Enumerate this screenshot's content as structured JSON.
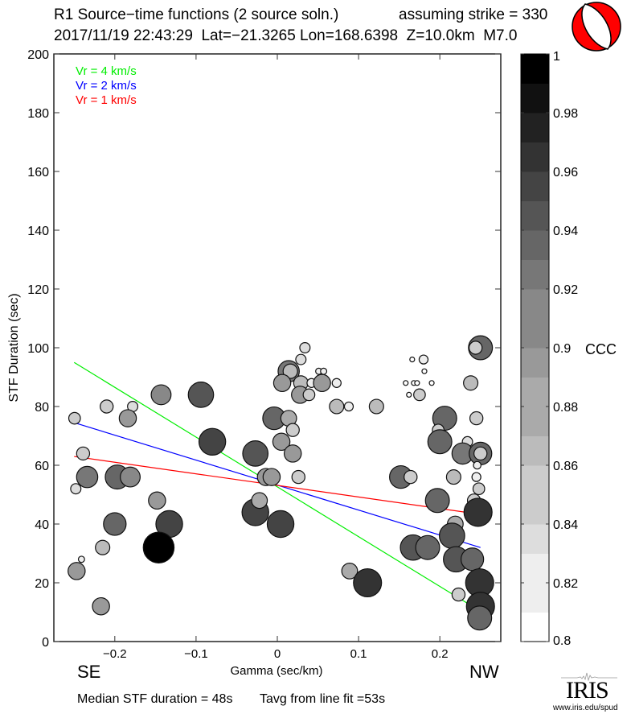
{
  "header": {
    "title": "R1 Source−time functions (2 source soln.)",
    "strike_text": "assuming strike = 330",
    "event_line": "2017/11/19 22:43:29  Lat=−21.3265 Lon=168.6398  Z=10.0km  M7.0"
  },
  "beachball": {
    "icon": "focal-mechanism-beachball",
    "compressional_color": "#ff0000",
    "dilatational_color": "#ffffff"
  },
  "footer": {
    "median_text": "Median STF duration = 48s",
    "tavg_text": "Tavg from line fit =53s"
  },
  "directions": {
    "left": "SE",
    "right": "NW"
  },
  "logo": {
    "name": "IRIS",
    "url_text": "www.iris.edu/spud"
  },
  "chart_data": {
    "type": "scatter",
    "xlabel": "Gamma (sec/km)",
    "ylabel": "STF Duration (sec)",
    "xlim": [
      -0.275,
      0.275
    ],
    "ylim": [
      0,
      200
    ],
    "xticks": [
      -0.2,
      -0.1,
      0,
      0.1,
      0.2
    ],
    "xtick_labels": [
      "−0.2",
      "−0.1",
      "0",
      "0.1",
      "0.2"
    ],
    "yticks": [
      0,
      20,
      40,
      60,
      80,
      100,
      120,
      140,
      160,
      180,
      200
    ],
    "ytick_labels": [
      "0",
      "20",
      "40",
      "60",
      "80",
      "100",
      "120",
      "140",
      "160",
      "180",
      "200"
    ],
    "grid": false,
    "legend": {
      "placement": "top-left",
      "entries": [
        {
          "label": "Vr = 4 km/s",
          "color": "#00ee00"
        },
        {
          "label": "Vr = 2 km/s",
          "color": "#0000ff"
        },
        {
          "label": "Vr = 1 km/s",
          "color": "#ff0000"
        }
      ]
    },
    "lines": [
      {
        "name": "Vr = 4 km/s",
        "color": "#00ee00",
        "x": [
          -0.25,
          0.234
        ],
        "y": [
          95,
          13
        ]
      },
      {
        "name": "Vr = 2 km/s",
        "color": "#0000ff",
        "x": [
          -0.25,
          0.25
        ],
        "y": [
          74.5,
          32
        ]
      },
      {
        "name": "Vr = 1 km/s",
        "color": "#ff0000",
        "x": [
          -0.25,
          0.232
        ],
        "y": [
          63,
          44
        ]
      }
    ],
    "colorbar": {
      "label": "CCC",
      "range": [
        0.8,
        1.0
      ],
      "ticks": [
        0.8,
        0.82,
        0.84,
        0.86,
        0.88,
        0.9,
        0.92,
        0.94,
        0.96,
        0.98,
        1
      ],
      "tick_labels": [
        "0.8",
        "0.82",
        "0.84",
        "0.86",
        "0.88",
        "0.9",
        "0.92",
        "0.94",
        "0.96",
        "0.98",
        "1"
      ],
      "bands": [
        "#ffffff",
        "#eeeeee",
        "#eeeeee",
        "#dddddd",
        "#cccccc",
        "#cccccc",
        "#bbbbbb",
        "#aaaaaa",
        "#aaaaaa",
        "#999999",
        "#888888",
        "#888888",
        "#777777",
        "#666666",
        "#555555",
        "#444444",
        "#333333",
        "#222222",
        "#111111",
        "#000000"
      ]
    },
    "size_note": "marker size scales with CCC",
    "points": [
      {
        "x": -0.2495,
        "y": 76,
        "ccc": 0.85
      },
      {
        "x": -0.21,
        "y": 80,
        "ccc": 0.86
      },
      {
        "x": -0.178,
        "y": 80,
        "ccc": 0.84
      },
      {
        "x": -0.184,
        "y": 76,
        "ccc": 0.89
      },
      {
        "x": -0.143,
        "y": 84,
        "ccc": 0.91
      },
      {
        "x": -0.094,
        "y": 84,
        "ccc": 0.95
      },
      {
        "x": -0.08,
        "y": 68,
        "ccc": 0.96
      },
      {
        "x": -0.239,
        "y": 64,
        "ccc": 0.86
      },
      {
        "x": -0.234,
        "y": 56,
        "ccc": 0.92
      },
      {
        "x": -0.248,
        "y": 52,
        "ccc": 0.84
      },
      {
        "x": -0.197,
        "y": 56,
        "ccc": 0.94
      },
      {
        "x": -0.181,
        "y": 56,
        "ccc": 0.91
      },
      {
        "x": -0.148,
        "y": 48,
        "ccc": 0.89
      },
      {
        "x": -0.2,
        "y": 40,
        "ccc": 0.93
      },
      {
        "x": -0.215,
        "y": 32,
        "ccc": 0.87
      },
      {
        "x": -0.241,
        "y": 28,
        "ccc": 0.81
      },
      {
        "x": -0.247,
        "y": 24,
        "ccc": 0.89
      },
      {
        "x": -0.217,
        "y": 12,
        "ccc": 0.89
      },
      {
        "x": -0.133,
        "y": 40,
        "ccc": 0.96
      },
      {
        "x": -0.146,
        "y": 32,
        "ccc": 0.99
      },
      {
        "x": 0.034,
        "y": 100,
        "ccc": 0.84
      },
      {
        "x": 0.029,
        "y": 96,
        "ccc": 0.84
      },
      {
        "x": 0.014,
        "y": 92,
        "ccc": 0.92
      },
      {
        "x": 0.016,
        "y": 92,
        "ccc": 0.87
      },
      {
        "x": 0.006,
        "y": 88,
        "ccc": 0.89
      },
      {
        "x": 0.029,
        "y": 88,
        "ccc": 0.87
      },
      {
        "x": 0.042,
        "y": 88,
        "ccc": 0.83
      },
      {
        "x": 0.055,
        "y": 88,
        "ccc": 0.89
      },
      {
        "x": 0.073,
        "y": 88,
        "ccc": 0.83
      },
      {
        "x": 0.051,
        "y": 92,
        "ccc": 0.81
      },
      {
        "x": 0.057,
        "y": 92,
        "ccc": 0.81
      },
      {
        "x": 0.028,
        "y": 84,
        "ccc": 0.89
      },
      {
        "x": 0.039,
        "y": 84,
        "ccc": 0.85
      },
      {
        "x": 0.073,
        "y": 80,
        "ccc": 0.87
      },
      {
        "x": 0.088,
        "y": 80,
        "ccc": 0.83
      },
      {
        "x": 0.122,
        "y": 80,
        "ccc": 0.87
      },
      {
        "x": -0.004,
        "y": 76,
        "ccc": 0.93
      },
      {
        "x": 0.014,
        "y": 76,
        "ccc": 0.88
      },
      {
        "x": 0.019,
        "y": 72,
        "ccc": 0.86
      },
      {
        "x": 0.005,
        "y": 68,
        "ccc": 0.89
      },
      {
        "x": 0.019,
        "y": 64,
        "ccc": 0.89
      },
      {
        "x": -0.027,
        "y": 64,
        "ccc": 0.95
      },
      {
        "x": -0.014,
        "y": 56,
        "ccc": 0.89
      },
      {
        "x": -0.007,
        "y": 56,
        "ccc": 0.89
      },
      {
        "x": 0.026,
        "y": 56,
        "ccc": 0.86
      },
      {
        "x": -0.027,
        "y": 44,
        "ccc": 0.96
      },
      {
        "x": -0.022,
        "y": 48,
        "ccc": 0.88
      },
      {
        "x": 0.004,
        "y": 40,
        "ccc": 0.96
      },
      {
        "x": 0.089,
        "y": 24,
        "ccc": 0.88
      },
      {
        "x": 0.111,
        "y": 20,
        "ccc": 0.97
      },
      {
        "x": 0.25,
        "y": 100,
        "ccc": 0.94
      },
      {
        "x": 0.244,
        "y": 100,
        "ccc": 0.86
      },
      {
        "x": 0.166,
        "y": 96,
        "ccc": 0.8
      },
      {
        "x": 0.18,
        "y": 96,
        "ccc": 0.83
      },
      {
        "x": 0.181,
        "y": 92,
        "ccc": 0.8
      },
      {
        "x": 0.158,
        "y": 88,
        "ccc": 0.8
      },
      {
        "x": 0.168,
        "y": 88,
        "ccc": 0.8
      },
      {
        "x": 0.172,
        "y": 88,
        "ccc": 0.8
      },
      {
        "x": 0.19,
        "y": 88,
        "ccc": 0.8
      },
      {
        "x": 0.238,
        "y": 88,
        "ccc": 0.87
      },
      {
        "x": 0.162,
        "y": 84,
        "ccc": 0.8
      },
      {
        "x": 0.175,
        "y": 84,
        "ccc": 0.85
      },
      {
        "x": 0.206,
        "y": 76,
        "ccc": 0.94
      },
      {
        "x": 0.245,
        "y": 76,
        "ccc": 0.86
      },
      {
        "x": 0.198,
        "y": 72,
        "ccc": 0.85
      },
      {
        "x": 0.2,
        "y": 68,
        "ccc": 0.94
      },
      {
        "x": 0.234,
        "y": 68,
        "ccc": 0.84
      },
      {
        "x": 0.228,
        "y": 64,
        "ccc": 0.92
      },
      {
        "x": 0.25,
        "y": 64,
        "ccc": 0.93
      },
      {
        "x": 0.25,
        "y": 64,
        "ccc": 0.86
      },
      {
        "x": 0.246,
        "y": 60,
        "ccc": 0.82
      },
      {
        "x": 0.245,
        "y": 56,
        "ccc": 0.83
      },
      {
        "x": 0.152,
        "y": 56,
        "ccc": 0.93
      },
      {
        "x": 0.164,
        "y": 56,
        "ccc": 0.86
      },
      {
        "x": 0.217,
        "y": 56,
        "ccc": 0.87
      },
      {
        "x": 0.248,
        "y": 52,
        "ccc": 0.85
      },
      {
        "x": 0.242,
        "y": 48,
        "ccc": 0.86
      },
      {
        "x": 0.197,
        "y": 48,
        "ccc": 0.94
      },
      {
        "x": 0.247,
        "y": 44,
        "ccc": 0.97
      },
      {
        "x": 0.219,
        "y": 40,
        "ccc": 0.88
      },
      {
        "x": 0.215,
        "y": 36,
        "ccc": 0.95
      },
      {
        "x": 0.167,
        "y": 32,
        "ccc": 0.95
      },
      {
        "x": 0.185,
        "y": 32,
        "ccc": 0.94
      },
      {
        "x": 0.22,
        "y": 28,
        "ccc": 0.95
      },
      {
        "x": 0.24,
        "y": 28,
        "ccc": 0.93
      },
      {
        "x": 0.249,
        "y": 20,
        "ccc": 0.97
      },
      {
        "x": 0.223,
        "y": 16,
        "ccc": 0.86
      },
      {
        "x": 0.25,
        "y": 12,
        "ccc": 0.97
      },
      {
        "x": 0.249,
        "y": 8,
        "ccc": 0.94
      }
    ]
  }
}
